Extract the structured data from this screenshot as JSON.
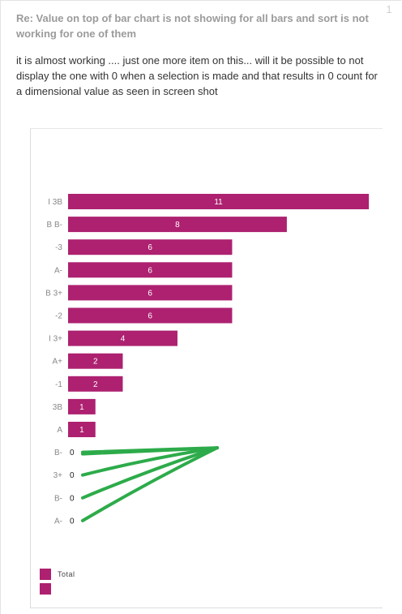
{
  "post": {
    "title": "Re: Value on top of bar chart is not showing for all bars and sort is not working for one of them",
    "body": "it is almost working .... just one more item on this... will it be possible to not display the one with 0 when a selection is made and that results in 0 count for a dimensional value as seen in screen shot",
    "badge": "1"
  },
  "chart_data": {
    "type": "bar",
    "orientation": "horizontal",
    "categories": [
      "I 3B",
      "B B-",
      "-3",
      "A-",
      "B 3+",
      "-2",
      "I 3+",
      "A+",
      "-1",
      "3B",
      "A",
      "B-",
      "3+",
      "B-",
      "A-"
    ],
    "values": [
      11,
      8,
      6,
      6,
      6,
      6,
      4,
      2,
      2,
      1,
      1,
      0,
      0,
      0,
      0
    ],
    "xlim": [
      0,
      11.5
    ],
    "legend": {
      "entries": [
        "Total",
        ""
      ],
      "placement": "bottom-left"
    },
    "colors": {
      "bar": "#ad2170",
      "annotation": "#2dab4a"
    },
    "annotation": "green arrows pointing from a common point to the four zero-value labels"
  }
}
